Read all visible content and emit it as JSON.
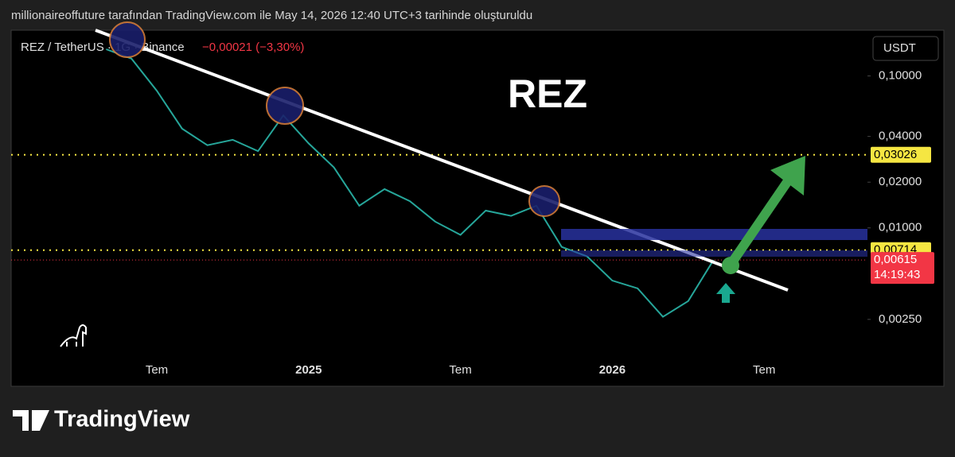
{
  "header": {
    "caption": "millionaireoffuture tarafından TradingView.com ile May 14, 2026 12:40 UTC+3 tarihinde oluşturuldu"
  },
  "chart_data": {
    "type": "line",
    "title": "REZ",
    "symbol": "REZ / TetherUS · 1G · Binance",
    "change": "−0,00021 (−3,30%)",
    "currency": "USDT",
    "log_scale": true,
    "grid": false,
    "categories": [
      null,
      null,
      null,
      "Tem",
      null,
      null,
      null,
      null,
      null,
      "2025",
      null,
      null,
      null,
      null,
      null,
      "Tem",
      null,
      null,
      null,
      null,
      null,
      "2026",
      null,
      null,
      null,
      null,
      null,
      "Tem",
      null
    ],
    "series": [
      {
        "name": "REZ",
        "color": "#26a69a",
        "values": [
          null,
          0.15,
          0.13,
          0.08,
          0.045,
          0.035,
          0.038,
          0.032,
          0.055,
          0.036,
          0.025,
          0.014,
          0.018,
          0.015,
          0.011,
          0.009,
          0.013,
          0.012,
          0.014,
          0.0075,
          0.0065,
          0.0045,
          0.004,
          0.0026,
          0.0033,
          0.00615,
          null,
          null,
          null
        ]
      }
    ],
    "ylim": [
      0.0014,
      0.2
    ],
    "yticks": [
      {
        "value": 0.1,
        "label": "0,10000"
      },
      {
        "value": 0.04,
        "label": "0,04000"
      },
      {
        "value": 0.02,
        "label": "0,02000"
      },
      {
        "value": 0.01,
        "label": "0,01000"
      },
      {
        "value": 0.0025,
        "label": "0,00250"
      }
    ],
    "price_lines": [
      {
        "value": 0.03026,
        "label": "0,03026",
        "color": "#f5e642"
      },
      {
        "value": 0.00714,
        "label": "0,00714",
        "color": "#f5e642"
      }
    ],
    "last_price": {
      "value": 0.00615,
      "label": "0,00615",
      "countdown": "14:19:43",
      "color": "#f23645"
    }
  },
  "footer": {
    "brand": "TradingView"
  }
}
